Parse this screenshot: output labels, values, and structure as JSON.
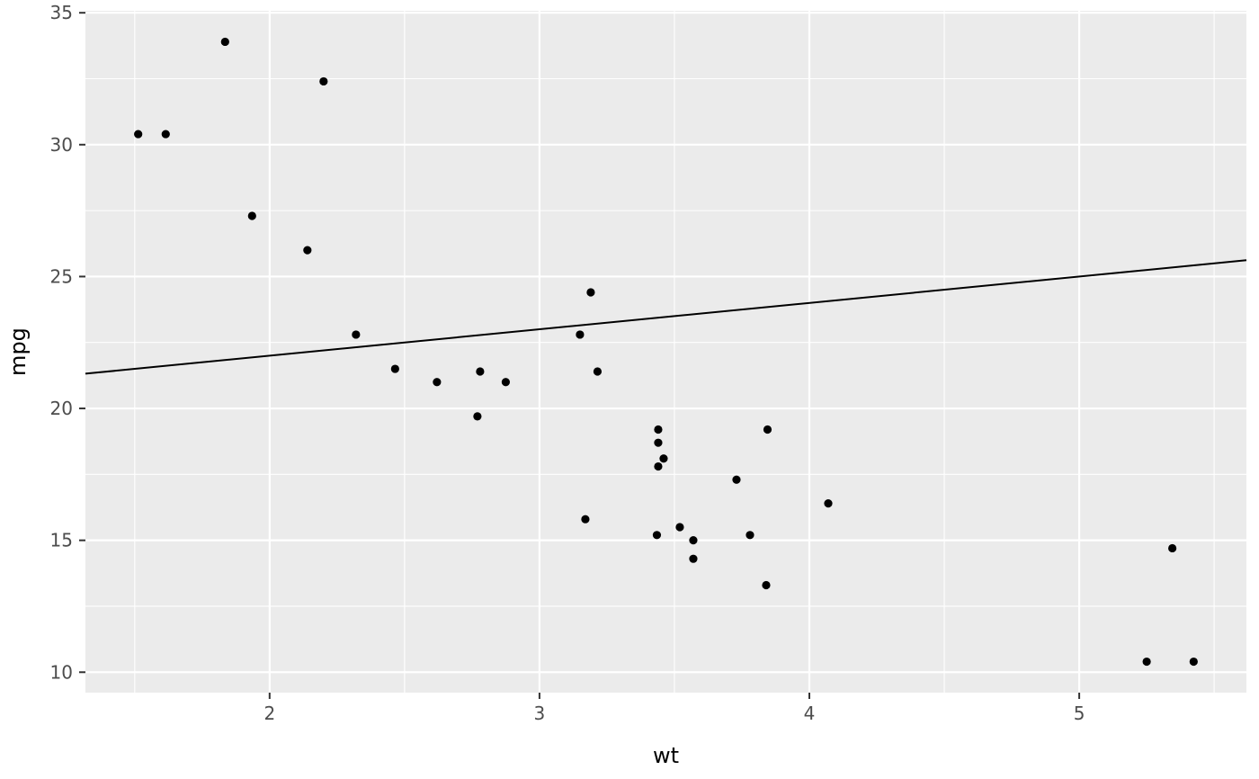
{
  "chart_data": {
    "type": "scatter",
    "title": "",
    "xlabel": "wt",
    "ylabel": "mpg",
    "xlim": [
      1.3175,
      5.6195
    ],
    "ylim": [
      9.225,
      35.075
    ],
    "x_ticks": [
      2,
      3,
      4,
      5
    ],
    "y_ticks": [
      10,
      15,
      20,
      25,
      30,
      35
    ],
    "x_minor_ticks": [
      1.5,
      2.5,
      3.5,
      4.5,
      5.5
    ],
    "y_minor_ticks": [
      12.5,
      17.5,
      22.5,
      27.5,
      32.5
    ],
    "grid": "on",
    "legend": "none",
    "points": [
      [
        2.62,
        21.0
      ],
      [
        2.875,
        21.0
      ],
      [
        2.32,
        22.8
      ],
      [
        3.215,
        21.4
      ],
      [
        3.44,
        18.7
      ],
      [
        3.46,
        18.1
      ],
      [
        3.57,
        14.3
      ],
      [
        3.19,
        24.4
      ],
      [
        3.15,
        22.8
      ],
      [
        3.44,
        19.2
      ],
      [
        3.44,
        17.8
      ],
      [
        4.07,
        16.4
      ],
      [
        3.73,
        17.3
      ],
      [
        3.78,
        15.2
      ],
      [
        5.25,
        10.4
      ],
      [
        5.424,
        10.4
      ],
      [
        5.345,
        14.7
      ],
      [
        2.2,
        32.4
      ],
      [
        1.615,
        30.4
      ],
      [
        1.835,
        33.9
      ],
      [
        2.465,
        21.5
      ],
      [
        3.52,
        15.5
      ],
      [
        3.435,
        15.2
      ],
      [
        3.84,
        13.3
      ],
      [
        3.845,
        19.2
      ],
      [
        1.935,
        27.3
      ],
      [
        2.14,
        26.0
      ],
      [
        1.513,
        30.4
      ],
      [
        3.17,
        15.8
      ],
      [
        2.77,
        19.7
      ],
      [
        3.57,
        15.0
      ],
      [
        2.78,
        21.4
      ]
    ],
    "line": {
      "kind": "abline",
      "intercept": 20,
      "slope": 1
    },
    "theme": {
      "panel_bg": "#EBEBEB",
      "grid_color": "#FFFFFF",
      "tick_mark_color": "#333333",
      "tick_label_color": "#4D4D4D",
      "axis_title_color": "#000000",
      "point_color": "#000000",
      "line_color": "#000000"
    }
  }
}
